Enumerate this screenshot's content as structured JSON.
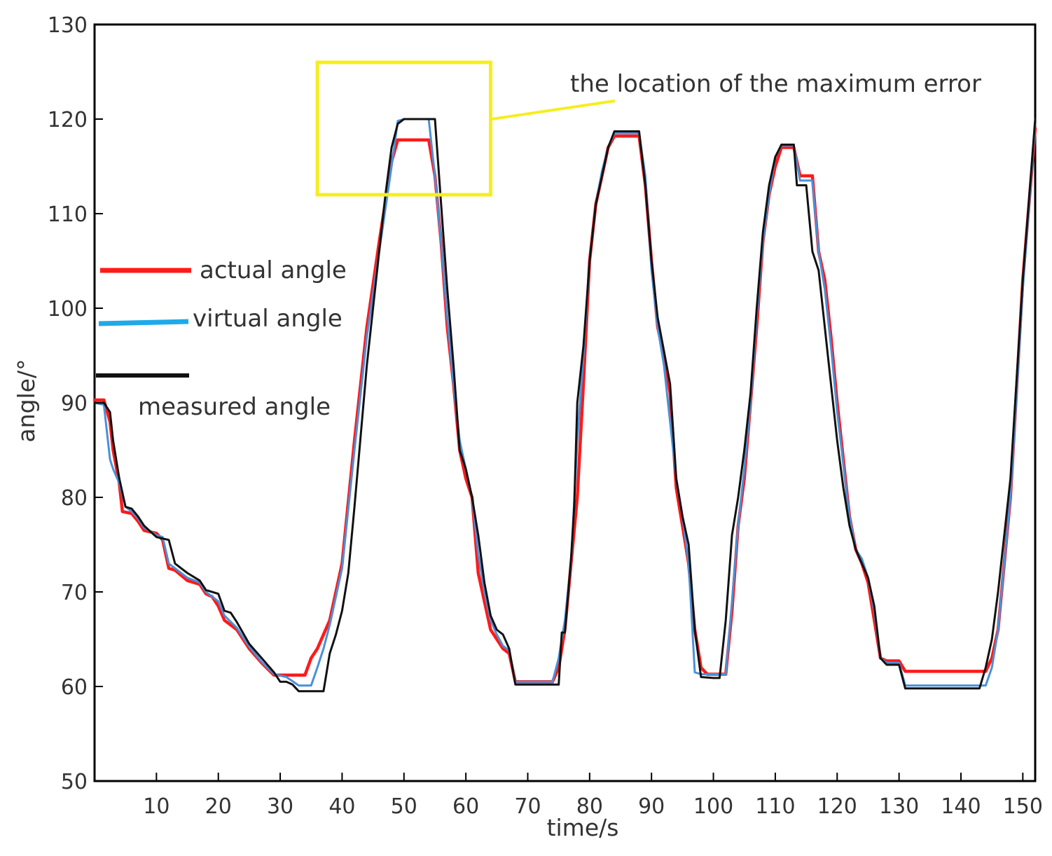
{
  "chart_data": {
    "type": "line",
    "title": "",
    "xlabel": "time/s",
    "ylabel": "angle/°",
    "xlim": [
      0,
      152
    ],
    "ylim": [
      50,
      130
    ],
    "x_ticks": [
      10,
      20,
      30,
      40,
      50,
      60,
      70,
      80,
      90,
      100,
      110,
      120,
      130,
      140,
      150
    ],
    "y_ticks": [
      50,
      60,
      70,
      80,
      90,
      100,
      110,
      120,
      130
    ],
    "grid": false,
    "legend_position": "left",
    "legend": [
      "actual angle",
      "virtual angle",
      "measured angle"
    ],
    "annotation": {
      "text": "the location of the maximum error",
      "box_x": [
        36,
        64
      ],
      "box_y": [
        112,
        126
      ],
      "color": "#F5EE1E"
    },
    "series": [
      {
        "name": "actual angle",
        "color": "#FF1A1A",
        "points": [
          [
            0,
            90.3
          ],
          [
            1.5,
            90.3
          ],
          [
            2.5,
            88
          ],
          [
            3,
            85
          ],
          [
            4,
            81.5
          ],
          [
            4.5,
            78.5
          ],
          [
            6,
            78.3
          ],
          [
            7,
            77.5
          ],
          [
            8,
            76.5
          ],
          [
            10,
            76.2
          ],
          [
            11,
            75.5
          ],
          [
            12,
            72.5
          ],
          [
            13,
            72.3
          ],
          [
            15,
            71.2
          ],
          [
            16,
            71
          ],
          [
            17,
            70.8
          ],
          [
            18,
            69.8
          ],
          [
            19,
            69.5
          ],
          [
            20,
            68.5
          ],
          [
            21,
            67
          ],
          [
            23,
            66
          ],
          [
            25,
            64
          ],
          [
            27,
            62.5
          ],
          [
            29,
            61.2
          ],
          [
            33,
            61.2
          ],
          [
            34,
            61.2
          ],
          [
            35,
            63
          ],
          [
            36,
            64
          ],
          [
            37,
            65.5
          ],
          [
            38,
            67
          ],
          [
            40,
            73
          ],
          [
            42,
            86
          ],
          [
            44,
            98
          ],
          [
            46,
            107
          ],
          [
            48,
            115.5
          ],
          [
            49,
            117.8
          ],
          [
            50,
            117.8
          ],
          [
            52,
            117.8
          ],
          [
            54,
            117.8
          ],
          [
            55,
            114
          ],
          [
            56,
            107
          ],
          [
            57,
            98
          ],
          [
            58,
            92
          ],
          [
            59,
            85
          ],
          [
            60,
            82
          ],
          [
            61,
            80
          ],
          [
            62,
            72
          ],
          [
            63,
            69
          ],
          [
            64,
            66
          ],
          [
            65,
            65
          ],
          [
            66,
            64
          ],
          [
            67,
            63.5
          ],
          [
            68,
            60.5
          ],
          [
            69,
            60.5
          ],
          [
            74,
            60.5
          ],
          [
            75,
            62
          ],
          [
            76,
            66
          ],
          [
            78,
            80
          ],
          [
            79,
            92
          ],
          [
            80,
            105
          ],
          [
            81,
            111
          ],
          [
            82,
            114
          ],
          [
            83,
            117
          ],
          [
            84,
            118.2
          ],
          [
            88,
            118.2
          ],
          [
            89,
            113
          ],
          [
            90,
            105
          ],
          [
            91,
            98
          ],
          [
            92,
            95
          ],
          [
            93,
            91
          ],
          [
            94,
            81
          ],
          [
            95,
            77
          ],
          [
            96,
            73
          ],
          [
            97,
            66
          ],
          [
            98,
            62
          ],
          [
            99,
            61.3
          ],
          [
            102,
            61.3
          ],
          [
            103,
            68
          ],
          [
            104,
            77
          ],
          [
            105,
            82
          ],
          [
            106,
            90
          ],
          [
            107,
            98
          ],
          [
            108,
            107
          ],
          [
            109,
            112
          ],
          [
            110,
            115
          ],
          [
            111,
            117
          ],
          [
            113,
            117
          ],
          [
            114,
            114
          ],
          [
            116,
            114
          ],
          [
            117,
            106
          ],
          [
            118,
            103
          ],
          [
            119,
            97
          ],
          [
            120,
            90
          ],
          [
            122,
            78
          ],
          [
            123,
            74.5
          ],
          [
            124,
            73
          ],
          [
            125,
            71
          ],
          [
            126,
            67
          ],
          [
            127,
            63
          ],
          [
            128,
            62.7
          ],
          [
            130,
            62.7
          ],
          [
            131,
            61.6
          ],
          [
            144,
            61.6
          ],
          [
            145,
            63
          ],
          [
            146,
            66
          ],
          [
            148,
            80
          ],
          [
            150,
            103
          ],
          [
            152,
            119
          ]
        ]
      },
      {
        "name": "virtual angle",
        "color": "#4A90D9",
        "points": [
          [
            0,
            90
          ],
          [
            1.5,
            89.8
          ],
          [
            2.5,
            84
          ],
          [
            3,
            83
          ],
          [
            4,
            81.5
          ],
          [
            5,
            79
          ],
          [
            6,
            78.5
          ],
          [
            7,
            77.8
          ],
          [
            8,
            76.8
          ],
          [
            10,
            76
          ],
          [
            11,
            75.8
          ],
          [
            12,
            73
          ],
          [
            13,
            72.5
          ],
          [
            15,
            71.5
          ],
          [
            17,
            71
          ],
          [
            18,
            70
          ],
          [
            20,
            69
          ],
          [
            21,
            67.5
          ],
          [
            23,
            66.2
          ],
          [
            25,
            64.2
          ],
          [
            27,
            62.6
          ],
          [
            29,
            61.3
          ],
          [
            31,
            61
          ],
          [
            33,
            60.1
          ],
          [
            35,
            60.1
          ],
          [
            36,
            62
          ],
          [
            37,
            64
          ],
          [
            38,
            66.5
          ],
          [
            40,
            72.5
          ],
          [
            42,
            85
          ],
          [
            44,
            97
          ],
          [
            46,
            106
          ],
          [
            48,
            115
          ],
          [
            49,
            119.8
          ],
          [
            50,
            120
          ],
          [
            54,
            120
          ],
          [
            55,
            114
          ],
          [
            56,
            107
          ],
          [
            57,
            99
          ],
          [
            58,
            92
          ],
          [
            59,
            86
          ],
          [
            60,
            83
          ],
          [
            61,
            80
          ],
          [
            62,
            74
          ],
          [
            63,
            70
          ],
          [
            64,
            67
          ],
          [
            65,
            65.5
          ],
          [
            66,
            64.3
          ],
          [
            67,
            63.8
          ],
          [
            68,
            60.5
          ],
          [
            74,
            60.5
          ],
          [
            75,
            63
          ],
          [
            76,
            67
          ],
          [
            77,
            73
          ],
          [
            78,
            86
          ],
          [
            79,
            95
          ],
          [
            80,
            105
          ],
          [
            81,
            111
          ],
          [
            82,
            114.5
          ],
          [
            83,
            117
          ],
          [
            84,
            118.5
          ],
          [
            88,
            118.5
          ],
          [
            89,
            114
          ],
          [
            90,
            104
          ],
          [
            91,
            98
          ],
          [
            92,
            94
          ],
          [
            93,
            88
          ],
          [
            94,
            82
          ],
          [
            95,
            78
          ],
          [
            96,
            73
          ],
          [
            97,
            61.5
          ],
          [
            98,
            61.3
          ],
          [
            102,
            61.3
          ],
          [
            103,
            69
          ],
          [
            104,
            77
          ],
          [
            105,
            83
          ],
          [
            106,
            90
          ],
          [
            107,
            99
          ],
          [
            108,
            107
          ],
          [
            109,
            112
          ],
          [
            110,
            116
          ],
          [
            111,
            117.2
          ],
          [
            113,
            117.2
          ],
          [
            114,
            113.5
          ],
          [
            116,
            113.5
          ],
          [
            117,
            106
          ],
          [
            118,
            102
          ],
          [
            119,
            96
          ],
          [
            120,
            89
          ],
          [
            122,
            78
          ],
          [
            123,
            74.5
          ],
          [
            124,
            73.5
          ],
          [
            125,
            71.5
          ],
          [
            126,
            68
          ],
          [
            127,
            63
          ],
          [
            128,
            62.5
          ],
          [
            130,
            62.5
          ],
          [
            131,
            60.1
          ],
          [
            144,
            60.1
          ],
          [
            145,
            62
          ],
          [
            146,
            66
          ],
          [
            148,
            80
          ],
          [
            150,
            102
          ],
          [
            152,
            119.5
          ]
        ]
      },
      {
        "name": "measured angle",
        "color": "#111111",
        "points": [
          [
            0,
            90
          ],
          [
            1.5,
            90
          ],
          [
            2.5,
            89
          ],
          [
            3,
            86
          ],
          [
            4,
            82
          ],
          [
            5,
            79
          ],
          [
            6,
            78.8
          ],
          [
            7,
            78
          ],
          [
            8,
            77
          ],
          [
            10,
            75.8
          ],
          [
            12,
            75.5
          ],
          [
            13,
            73
          ],
          [
            14,
            72.5
          ],
          [
            15,
            72
          ],
          [
            17,
            71.2
          ],
          [
            18,
            70.2
          ],
          [
            20,
            69.8
          ],
          [
            21,
            68
          ],
          [
            22,
            67.8
          ],
          [
            23,
            66.8
          ],
          [
            25,
            64.5
          ],
          [
            27,
            63
          ],
          [
            29,
            61.5
          ],
          [
            30,
            60.5
          ],
          [
            31,
            60.5
          ],
          [
            32,
            60.2
          ],
          [
            33,
            59.5
          ],
          [
            37,
            59.5
          ],
          [
            38,
            63.5
          ],
          [
            39,
            65.5
          ],
          [
            40,
            68
          ],
          [
            41,
            72
          ],
          [
            42,
            79
          ],
          [
            44,
            94
          ],
          [
            46,
            106
          ],
          [
            47,
            112
          ],
          [
            48,
            117
          ],
          [
            49,
            119.5
          ],
          [
            50,
            120
          ],
          [
            55,
            120
          ],
          [
            56,
            111
          ],
          [
            57,
            102
          ],
          [
            58,
            94
          ],
          [
            59,
            85
          ],
          [
            60,
            83
          ],
          [
            61,
            80
          ],
          [
            62,
            76
          ],
          [
            63,
            71
          ],
          [
            64,
            67.5
          ],
          [
            65,
            66
          ],
          [
            66,
            65.5
          ],
          [
            67,
            64
          ],
          [
            68,
            60.2
          ],
          [
            75,
            60.2
          ],
          [
            75.5,
            65.7
          ],
          [
            76,
            65.7
          ],
          [
            77,
            73.5
          ],
          [
            77.5,
            79
          ],
          [
            78,
            90
          ],
          [
            79,
            96
          ],
          [
            80,
            105
          ],
          [
            81,
            111
          ],
          [
            82,
            114
          ],
          [
            83,
            117
          ],
          [
            84,
            118.7
          ],
          [
            88,
            118.7
          ],
          [
            89,
            113
          ],
          [
            90,
            105
          ],
          [
            91,
            99
          ],
          [
            92,
            95.5
          ],
          [
            93,
            92
          ],
          [
            94,
            82
          ],
          [
            95,
            78
          ],
          [
            96,
            75
          ],
          [
            97,
            66
          ],
          [
            98,
            61
          ],
          [
            100,
            60.9
          ],
          [
            101,
            60.9
          ],
          [
            102,
            67
          ],
          [
            103,
            76
          ],
          [
            104,
            80
          ],
          [
            105,
            85
          ],
          [
            106,
            91
          ],
          [
            107,
            100
          ],
          [
            108,
            108
          ],
          [
            109,
            113
          ],
          [
            110,
            116
          ],
          [
            111,
            117.3
          ],
          [
            113,
            117.3
          ],
          [
            113.5,
            113
          ],
          [
            115,
            113
          ],
          [
            116,
            106
          ],
          [
            117,
            104
          ],
          [
            118,
            98
          ],
          [
            119,
            92
          ],
          [
            120,
            86
          ],
          [
            121,
            81
          ],
          [
            122,
            77
          ],
          [
            123,
            74.5
          ],
          [
            124,
            73
          ],
          [
            125,
            71.5
          ],
          [
            126,
            68.5
          ],
          [
            127,
            63
          ],
          [
            128,
            62.3
          ],
          [
            130,
            62.3
          ],
          [
            131,
            59.8
          ],
          [
            143,
            59.8
          ],
          [
            144,
            62
          ],
          [
            145,
            65
          ],
          [
            146,
            70
          ],
          [
            148,
            82
          ],
          [
            150,
            103
          ],
          [
            152,
            120
          ]
        ]
      }
    ]
  }
}
